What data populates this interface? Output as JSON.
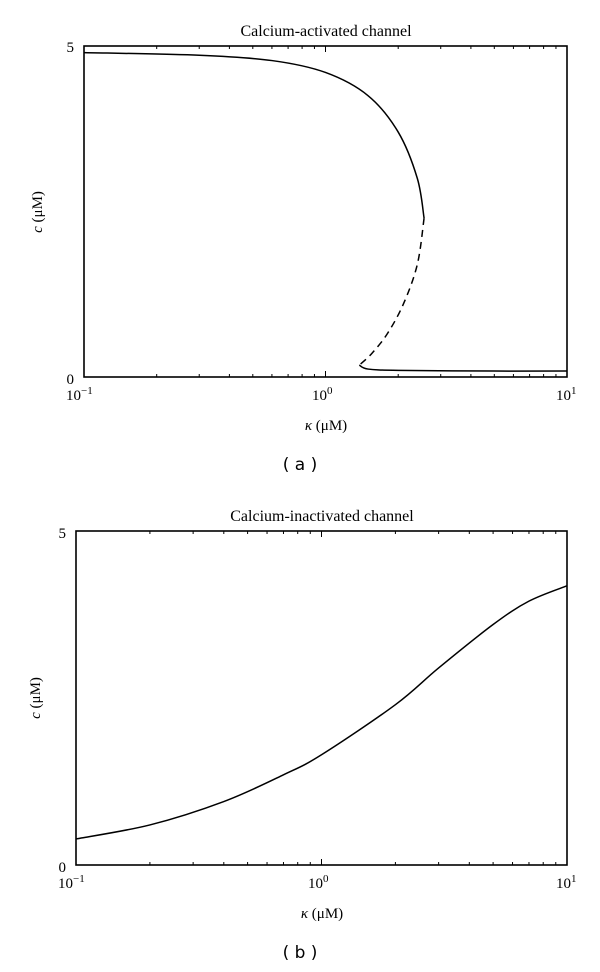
{
  "chart_data": [
    {
      "panel": "a",
      "type": "line",
      "title": "Calcium-activated channel",
      "xlabel": "κ (μM)",
      "ylabel": "c (μM)",
      "xscale": "log",
      "xlim": [
        0.1,
        10
      ],
      "ylim": [
        0,
        5
      ],
      "xticklabels": [
        "10^-1",
        "10^0",
        "10^1"
      ],
      "yticklabels": [
        "0",
        "5"
      ],
      "grid": false,
      "legend": null,
      "caption": "( a )",
      "series": [
        {
          "name": "upper stable branch",
          "style": "solid",
          "points": [
            [
              0.1,
              4.9
            ],
            [
              0.3,
              4.86
            ],
            [
              0.6,
              4.78
            ],
            [
              1.0,
              4.6
            ],
            [
              1.5,
              4.25
            ],
            [
              2.0,
              3.7
            ],
            [
              2.4,
              3.0
            ],
            [
              2.56,
              2.4
            ]
          ]
        },
        {
          "name": "unstable branch",
          "style": "dashed",
          "points": [
            [
              2.56,
              2.4
            ],
            [
              2.4,
              1.7
            ],
            [
              2.1,
              1.1
            ],
            [
              1.8,
              0.65
            ],
            [
              1.55,
              0.35
            ],
            [
              1.38,
              0.18
            ]
          ]
        },
        {
          "name": "lower stable branch",
          "style": "solid",
          "points": [
            [
              1.38,
              0.18
            ],
            [
              1.5,
              0.12
            ],
            [
              2.0,
              0.1
            ],
            [
              5.0,
              0.09
            ],
            [
              10,
              0.09
            ]
          ]
        }
      ]
    },
    {
      "panel": "b",
      "type": "line",
      "title": "Calcium-inactivated channel",
      "xlabel": "κ (μM)",
      "ylabel": "c (μM)",
      "xscale": "log",
      "xlim": [
        0.1,
        10
      ],
      "ylim": [
        0,
        5
      ],
      "xticklabels": [
        "10^-1",
        "10^0",
        "10^1"
      ],
      "yticklabels": [
        "0",
        "5"
      ],
      "grid": false,
      "legend": null,
      "caption": "( b )",
      "series": [
        {
          "name": "stable branch",
          "style": "solid",
          "points": [
            [
              0.1,
              0.39
            ],
            [
              0.2,
              0.6
            ],
            [
              0.4,
              0.95
            ],
            [
              0.7,
              1.35
            ],
            [
              1.0,
              1.65
            ],
            [
              2.0,
              2.4
            ],
            [
              3.0,
              2.95
            ],
            [
              5.0,
              3.6
            ],
            [
              7.0,
              3.95
            ],
            [
              10,
              4.18
            ]
          ]
        }
      ]
    }
  ],
  "panels": {
    "a": {
      "title": "Calcium-activated channel",
      "ylabel_var": "c",
      "ylabel_unit": " (μM)",
      "xlabel_var": "κ",
      "xlabel_unit": " (μM)",
      "ytick_top": "5",
      "ytick_bottom": "0",
      "xtick_base": "10",
      "xtick_exp_left": "−1",
      "xtick_exp_mid": "0",
      "xtick_exp_right": "1",
      "caption": "( a )"
    },
    "b": {
      "title": "Calcium-inactivated channel",
      "ylabel_var": "c",
      "ylabel_unit": " (μM)",
      "xlabel_var": "κ",
      "xlabel_unit": " (μM)",
      "ytick_top": "5",
      "ytick_bottom": "0",
      "xtick_base": "10",
      "xtick_exp_left": "−1",
      "xtick_exp_mid": "0",
      "xtick_exp_right": "1",
      "caption": "( b )"
    }
  }
}
